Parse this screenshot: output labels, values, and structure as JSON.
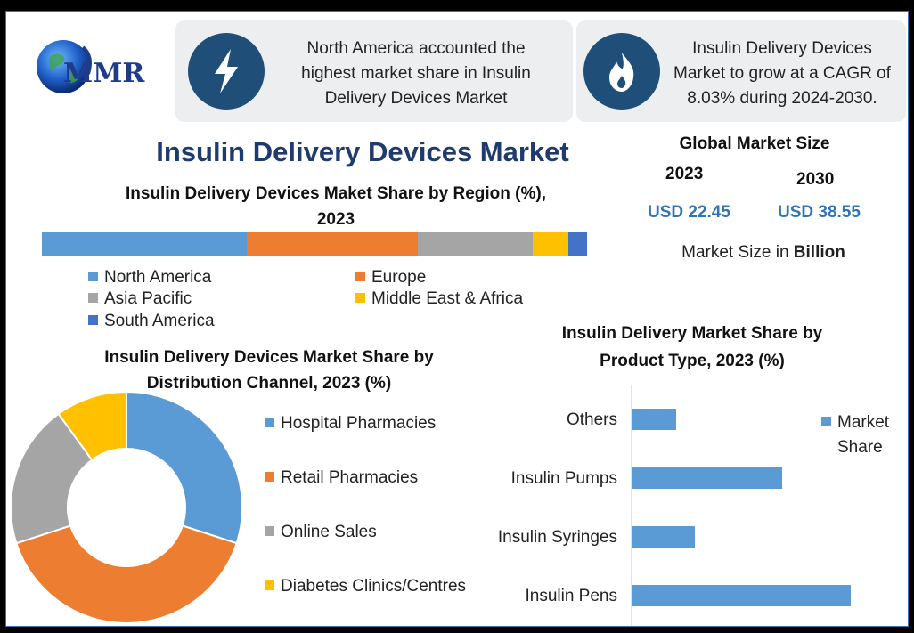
{
  "logo": {
    "text": "MMR"
  },
  "info_boxes": [
    {
      "icon": "lightning-icon",
      "lines": [
        "North America accounted the",
        "highest market share in Insulin",
        "Delivery Devices Market"
      ]
    },
    {
      "icon": "flame-icon",
      "lines": [
        "Insulin Delivery Devices",
        "Market to grow at a CAGR of",
        "8.03% during 2024-2030."
      ]
    }
  ],
  "main_title": "Insulin Delivery Devices Market",
  "global_market": {
    "title": "Global Market Size",
    "years": [
      {
        "year": "2023",
        "value": "USD 22.45"
      },
      {
        "year": "2030",
        "value": "USD 38.55"
      }
    ],
    "note_prefix": "Market Size in ",
    "note_bold": "Billion"
  },
  "colors": {
    "blue": "#5b9bd5",
    "orange": "#ed7d31",
    "gray": "#a5a5a5",
    "yellow": "#ffc000",
    "darkblue": "#4472c4",
    "navy": "#1f4e79"
  },
  "chart_data": [
    {
      "type": "bar",
      "orientation": "horizontal-stacked-100",
      "title": "Insulin Delivery Devices Maket Share by Region (%), 2023",
      "title_lines": [
        "Insulin Delivery Devices Maket Share by Region (%),",
        "2023"
      ],
      "series": [
        {
          "name": "North America",
          "value": 37.5,
          "color": "#5b9bd5"
        },
        {
          "name": "Europe",
          "value": 31.5,
          "color": "#ed7d31"
        },
        {
          "name": "Asia Pacific",
          "value": 21,
          "color": "#a5a5a5"
        },
        {
          "name": "Middle East & Africa",
          "value": 6.5,
          "color": "#ffc000"
        },
        {
          "name": "South America",
          "value": 3.5,
          "color": "#4472c4"
        }
      ],
      "legend_placement": "bottom"
    },
    {
      "type": "pie",
      "style": "donut",
      "title": "Insulin Delivery Devices Market Share by Distribution Channel, 2023 (%)",
      "title_lines": [
        "Insulin Delivery Devices Market Share by",
        "Distribution Channel, 2023 (%)"
      ],
      "categories": [
        "Hospital Pharmacies",
        "Retail Pharmacies",
        "Online Sales",
        "Diabetes Clinics/Centres"
      ],
      "values": [
        30,
        40,
        20,
        10
      ],
      "colors": [
        "#5b9bd5",
        "#ed7d31",
        "#a5a5a5",
        "#ffc000"
      ],
      "legend_placement": "right"
    },
    {
      "type": "bar",
      "orientation": "horizontal",
      "title": "Insulin Delivery Market Share by Product Type, 2023 (%)",
      "title_lines": [
        "Insulin Delivery Market Share by",
        "Product Type, 2023 (%)"
      ],
      "categories": [
        "Others",
        "Insulin Pumps",
        "Insulin Syringes",
        "Insulin Pens"
      ],
      "series": [
        {
          "name": "Market Share",
          "values": [
            7,
            24,
            10,
            35
          ],
          "color": "#5b9bd5"
        }
      ],
      "legend_lines": [
        "Market",
        "Share"
      ],
      "xlim": [
        0,
        40
      ],
      "grid": false,
      "legend_placement": "right"
    }
  ]
}
